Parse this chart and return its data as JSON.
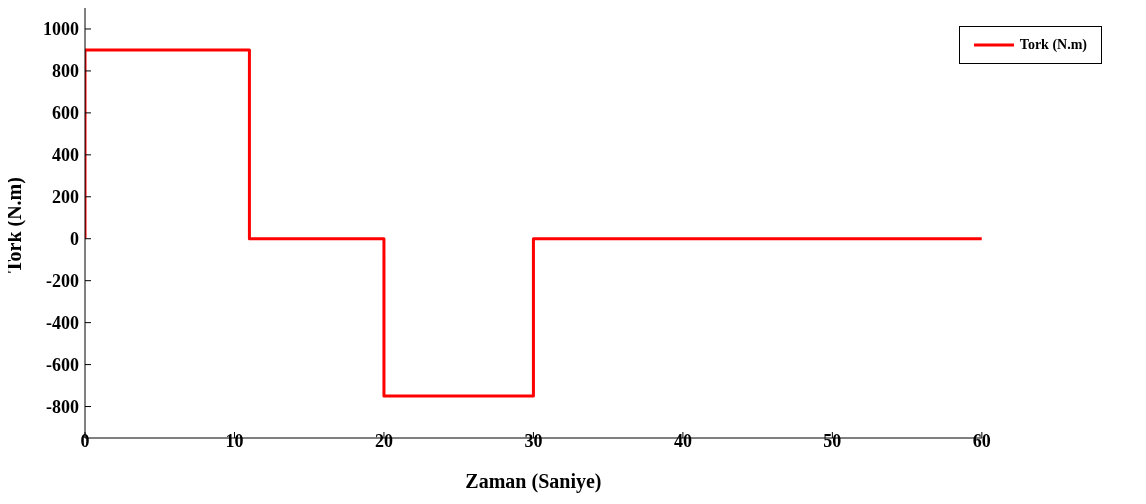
{
  "chart_data": {
    "type": "line",
    "xlabel": "Zaman (Saniye)",
    "ylabel": "Tork (N.m)",
    "x": [
      0,
      0,
      11,
      11,
      20,
      20,
      30,
      30,
      60
    ],
    "series": [
      {
        "name": "Tork (N.m)",
        "color": "#ff0000",
        "values": [
          0,
          900,
          900,
          0,
          0,
          -750,
          -750,
          0,
          0
        ]
      }
    ],
    "xlim": [
      0,
      60
    ],
    "xticks": [
      0,
      10,
      20,
      30,
      40,
      50,
      60
    ],
    "ylim": [
      -950,
      1100
    ],
    "yticks": [
      -800,
      -600,
      -400,
      -200,
      0,
      200,
      400,
      600,
      800,
      1000
    ],
    "grid": false,
    "legend": "top right",
    "marker": "none",
    "line_style": "solid"
  }
}
